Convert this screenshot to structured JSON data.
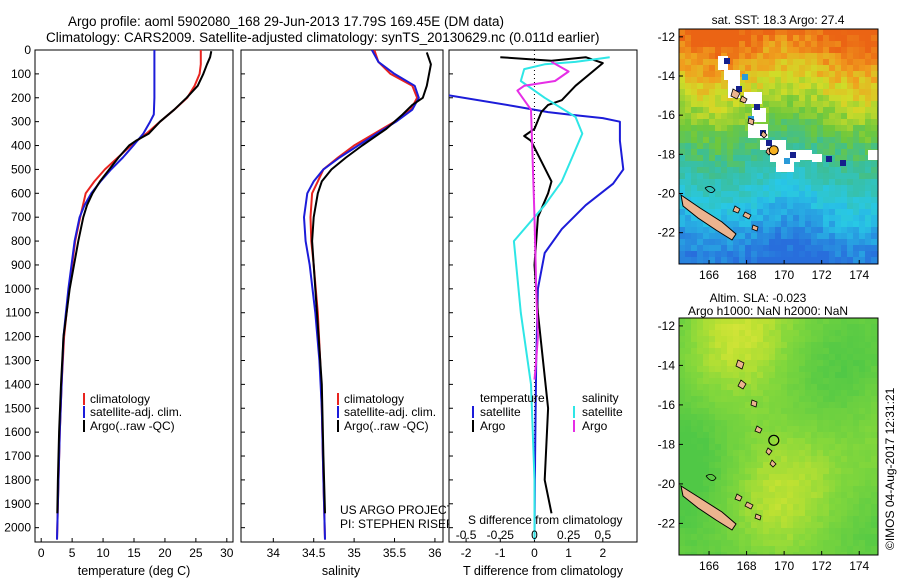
{
  "header": {
    "line1": "Argo profile: aoml 5902080_168 29-Jun-2013 17.79S 169.45E (DM data)",
    "line2": "Climatology: CARS2009. Satellite-adjusted climatology: synTS_20130629.nc (0.011d earlier)"
  },
  "footer_stamp": "©IMOS 04-Aug-2017 12:31:21",
  "colors": {
    "climatology": "#e8231f",
    "satellite": "#1c1cd9",
    "argo": "#000000",
    "salinity_satellite": "#2ee6e6",
    "salinity_argo": "#e62ee6"
  },
  "chart_data": [
    {
      "type": "line",
      "id": "temperature",
      "xlabel": "temperature (deg C)",
      "xlim": [
        -1,
        31
      ],
      "xticks": [
        0,
        5,
        10,
        15,
        20,
        25,
        30
      ],
      "ylim": [
        2060,
        0
      ],
      "yticks": [
        0,
        100,
        200,
        300,
        400,
        500,
        600,
        700,
        800,
        900,
        1000,
        1100,
        1200,
        1300,
        1400,
        1500,
        1600,
        1700,
        1800,
        1900,
        2000
      ],
      "legend": [
        "climatology",
        "satellite-adj. clim.",
        "Argo(..raw -QC)"
      ],
      "series": [
        {
          "name": "climatology",
          "color": "#e8231f",
          "x": [
            25.8,
            25.8,
            25.6,
            24.8,
            23.6,
            21.5,
            19.2,
            17.0,
            14.5,
            12.4,
            10.3,
            8.6,
            7.2,
            6.3,
            5.5,
            5.0,
            4.5,
            4.1,
            3.7,
            3.3,
            3.0,
            2.8,
            2.65,
            2.55
          ],
          "y": [
            0,
            60,
            100,
            150,
            200,
            250,
            300,
            350,
            400,
            450,
            500,
            550,
            600,
            700,
            800,
            900,
            1000,
            1100,
            1200,
            1400,
            1600,
            1800,
            1950,
            2050
          ]
        },
        {
          "name": "satellite-adj. clim.",
          "color": "#1c1cd9",
          "x": [
            18.3,
            18.3,
            18.3,
            18.2,
            17.6,
            16.5,
            14.9,
            13.2,
            11.3,
            9.6,
            8.1,
            7.0,
            6.2,
            5.4,
            4.9,
            4.4,
            4.0,
            3.6,
            3.3,
            3.0,
            2.8,
            2.65,
            2.55
          ],
          "y": [
            0,
            100,
            200,
            270,
            300,
            350,
            400,
            450,
            500,
            550,
            600,
            650,
            700,
            800,
            900,
            1000,
            1100,
            1200,
            1400,
            1600,
            1800,
            1950,
            2050
          ]
        },
        {
          "name": "Argo(..raw -QC)",
          "color": "#000000",
          "x": [
            27.5,
            27.3,
            26.8,
            26.2,
            25.3,
            23.5,
            21.5,
            19.2,
            17.4,
            15.3,
            14.2,
            12.5,
            11.0,
            9.5,
            8.3,
            7.4,
            6.8,
            6.0,
            5.3,
            4.6,
            4.1,
            3.6,
            3.2,
            2.9,
            2.7,
            2.6
          ],
          "y": [
            5,
            30,
            60,
            100,
            150,
            200,
            250,
            300,
            350,
            380,
            400,
            450,
            500,
            550,
            600,
            650,
            700,
            800,
            900,
            1000,
            1100,
            1200,
            1400,
            1600,
            1800,
            1940
          ]
        }
      ]
    },
    {
      "type": "line",
      "id": "salinity",
      "xlabel": "salinity",
      "xlim": [
        33.6,
        36.1
      ],
      "xticks": [
        34,
        34.5,
        35,
        35.5,
        36
      ],
      "ylim": [
        2060,
        0
      ],
      "legend": [
        "climatology",
        "satellite-adj. clim.",
        "Argo(..raw -QC)"
      ],
      "annotation": [
        "US ARGO PROJECT",
        "PI: STEPHEN RISER"
      ],
      "series": [
        {
          "name": "climatology",
          "color": "#e8231f",
          "x": [
            35.25,
            35.3,
            35.45,
            35.72,
            35.78,
            35.7,
            35.5,
            35.25,
            35.0,
            34.8,
            34.62,
            34.55,
            34.48,
            34.46,
            34.47,
            34.5,
            34.55,
            34.58,
            34.6,
            34.62,
            34.64
          ],
          "y": [
            0,
            50,
            100,
            150,
            200,
            250,
            300,
            350,
            400,
            450,
            500,
            550,
            600,
            700,
            800,
            900,
            1100,
            1300,
            1500,
            1800,
            2050
          ]
        },
        {
          "name": "satellite-adj. clim.",
          "color": "#1c1cd9",
          "x": [
            35.22,
            35.3,
            35.5,
            35.75,
            35.8,
            35.72,
            35.52,
            35.28,
            35.05,
            34.82,
            34.62,
            34.5,
            34.42,
            34.38,
            34.4,
            34.45,
            34.52,
            34.57,
            34.6,
            34.62,
            34.64
          ],
          "y": [
            0,
            50,
            100,
            150,
            200,
            250,
            300,
            350,
            400,
            450,
            500,
            550,
            600,
            700,
            800,
            900,
            1100,
            1300,
            1500,
            1800,
            2050
          ]
        },
        {
          "name": "Argo(..raw -QC)",
          "color": "#000000",
          "x": [
            35.9,
            35.95,
            35.9,
            35.85,
            35.72,
            35.6,
            35.4,
            35.1,
            34.9,
            34.72,
            34.6,
            34.55,
            34.5,
            34.48,
            34.5,
            34.52,
            34.56,
            34.6,
            34.62,
            34.64
          ],
          "y": [
            10,
            60,
            150,
            200,
            230,
            270,
            330,
            400,
            450,
            500,
            550,
            600,
            700,
            800,
            900,
            1000,
            1200,
            1400,
            1700,
            1940
          ]
        }
      ]
    },
    {
      "type": "line",
      "id": "difference",
      "xlabel": "T difference from climatology",
      "xlabel_top": "S difference from climatology",
      "xlim": [
        -2.5,
        3.0
      ],
      "xticks": [
        -2,
        -1,
        0,
        1,
        2
      ],
      "sticks_labels": [
        "-0.5",
        "-0.25",
        "0",
        "0.25",
        "0.5"
      ],
      "ylim": [
        2060,
        0
      ],
      "legend_temperature": [
        "temperature",
        "satellite",
        "Argo"
      ],
      "legend_salinity": [
        "salinity",
        "satellite",
        "Argo"
      ],
      "series": [
        {
          "name": "temperature satellite",
          "color": "#1c1cd9",
          "x": [
            -2.5,
            -0.6,
            0.4,
            1.0,
            2.0,
            2.5,
            2.5,
            2.6,
            2.3,
            1.5,
            0.8,
            0.3,
            0.1,
            0.05,
            0.02,
            0.0
          ],
          "y": [
            190,
            235,
            260,
            270,
            285,
            300,
            380,
            500,
            560,
            650,
            750,
            850,
            1000,
            1300,
            1700,
            2050
          ]
        },
        {
          "name": "temperature Argo",
          "color": "#000000",
          "x": [
            -1.0,
            0.5,
            1.5,
            2.0,
            1.2,
            0.8,
            0.4,
            0.2,
            0.0,
            -0.3,
            -0.1,
            0.5,
            0.4,
            0.1,
            0.0,
            0.1,
            0.4,
            0.3,
            0.5
          ],
          "y": [
            30,
            45,
            30,
            55,
            150,
            210,
            230,
            260,
            330,
            360,
            380,
            550,
            600,
            700,
            900,
            1100,
            1500,
            1800,
            1940
          ]
        },
        {
          "name": "salinity satellite",
          "color": "#2ee6e6",
          "x": [
            2.2,
            1.2,
            0.3,
            -0.3,
            -0.4,
            0.3,
            1.2,
            1.4,
            1.1,
            0.8,
            0.3,
            -0.6,
            -0.4,
            -0.1,
            0.0,
            0.0
          ],
          "y": [
            30,
            50,
            60,
            80,
            130,
            200,
            280,
            350,
            450,
            550,
            650,
            800,
            1100,
            1400,
            1800,
            2050
          ]
        },
        {
          "name": "salinity Argo",
          "color": "#e62ee6",
          "x": [
            0.5,
            1.0,
            0.6,
            -0.3,
            -0.5,
            -0.1,
            0.0,
            0.05,
            0.1,
            0.05,
            0.0
          ],
          "y": [
            50,
            90,
            130,
            150,
            170,
            250,
            700,
            1000,
            1200,
            1300,
            1380
          ]
        }
      ]
    },
    {
      "type": "heatmap",
      "id": "sst-map",
      "title": "sat. SST: 18.3 Argo: 27.4",
      "xticks": [
        166,
        168,
        170,
        172,
        174
      ],
      "yticks": [
        -12,
        -14,
        -16,
        -18,
        -20,
        -22
      ],
      "xlim": [
        164.4,
        175.0
      ],
      "ylim": [
        -23.6,
        -11.6
      ],
      "argo_position": {
        "lon": 169.45,
        "lat": -17.79
      }
    },
    {
      "type": "heatmap",
      "id": "sla-map",
      "title_line1": "Altim. SLA: -0.023",
      "title_line2": "Argo h1000: NaN h2000: NaN",
      "xticks": [
        166,
        168,
        170,
        172,
        174
      ],
      "yticks": [
        -12,
        -14,
        -16,
        -18,
        -20,
        -22
      ],
      "xlim": [
        164.4,
        175.0
      ],
      "ylim": [
        -23.6,
        -11.6
      ],
      "argo_position": {
        "lon": 169.45,
        "lat": -17.79
      }
    }
  ]
}
